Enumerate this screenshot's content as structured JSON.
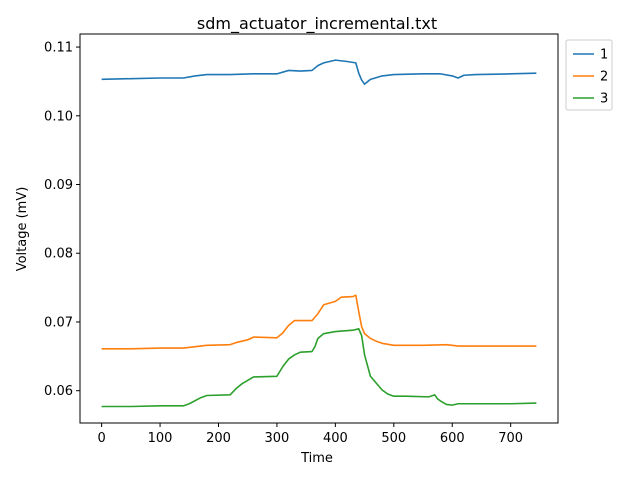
{
  "chart_data": {
    "type": "line",
    "title": "sdm_actuator_incremental.txt",
    "xlabel": "Time",
    "ylabel": "Voltage (mV)",
    "xlim": [
      -37,
      781
    ],
    "ylim": [
      0.0553,
      0.1119
    ],
    "x_ticks": [
      0,
      100,
      200,
      300,
      400,
      500,
      600,
      700
    ],
    "y_ticks": [
      0.06,
      0.07,
      0.08,
      0.09,
      0.1,
      0.11
    ],
    "grid": false,
    "legend_position": "upper-right-outside",
    "series": [
      {
        "name": "1",
        "color": "#1f77b4",
        "x": [
          0,
          50,
          100,
          140,
          160,
          180,
          220,
          260,
          300,
          320,
          340,
          360,
          370,
          380,
          400,
          420,
          435,
          440,
          445,
          450,
          460,
          480,
          500,
          550,
          580,
          600,
          610,
          620,
          640,
          700,
          744
        ],
        "y": [
          0.1053,
          0.1054,
          0.1055,
          0.1055,
          0.1058,
          0.106,
          0.106,
          0.1061,
          0.1061,
          0.1066,
          0.1065,
          0.1066,
          0.1073,
          0.1077,
          0.1081,
          0.1079,
          0.1077,
          0.1062,
          0.1052,
          0.1046,
          0.1053,
          0.1058,
          0.106,
          0.1061,
          0.1061,
          0.1058,
          0.1055,
          0.1059,
          0.106,
          0.1061,
          0.1062
        ]
      },
      {
        "name": "2",
        "color": "#ff7f0e",
        "x": [
          0,
          50,
          100,
          140,
          160,
          180,
          220,
          230,
          250,
          260,
          300,
          310,
          320,
          330,
          360,
          370,
          380,
          400,
          410,
          430,
          435,
          440,
          445,
          450,
          460,
          470,
          480,
          500,
          550,
          590,
          600,
          610,
          650,
          700,
          744
        ],
        "y": [
          0.0661,
          0.0661,
          0.0662,
          0.0662,
          0.0664,
          0.0666,
          0.0667,
          0.067,
          0.0674,
          0.0678,
          0.0677,
          0.0684,
          0.0695,
          0.0702,
          0.0702,
          0.0712,
          0.0725,
          0.073,
          0.0736,
          0.0737,
          0.0739,
          0.0715,
          0.0693,
          0.0683,
          0.0676,
          0.0672,
          0.0669,
          0.0666,
          0.0666,
          0.0667,
          0.0666,
          0.0665,
          0.0665,
          0.0665,
          0.0665
        ]
      },
      {
        "name": "3",
        "color": "#2ca02c",
        "x": [
          0,
          50,
          100,
          140,
          150,
          170,
          180,
          220,
          230,
          240,
          260,
          300,
          310,
          320,
          330,
          340,
          360,
          365,
          370,
          380,
          400,
          430,
          440,
          445,
          450,
          460,
          470,
          480,
          490,
          500,
          520,
          560,
          570,
          575,
          580,
          590,
          600,
          610,
          650,
          700,
          744
        ],
        "y": [
          0.0577,
          0.0577,
          0.0578,
          0.0578,
          0.0581,
          0.059,
          0.0593,
          0.0594,
          0.0603,
          0.061,
          0.062,
          0.0621,
          0.0635,
          0.0646,
          0.0652,
          0.0656,
          0.0657,
          0.0664,
          0.0676,
          0.0683,
          0.0686,
          0.0688,
          0.069,
          0.068,
          0.0652,
          0.0621,
          0.0611,
          0.0601,
          0.0595,
          0.0592,
          0.0592,
          0.0591,
          0.0594,
          0.0588,
          0.0585,
          0.058,
          0.0579,
          0.0581,
          0.0581,
          0.0581,
          0.0582
        ]
      }
    ]
  }
}
